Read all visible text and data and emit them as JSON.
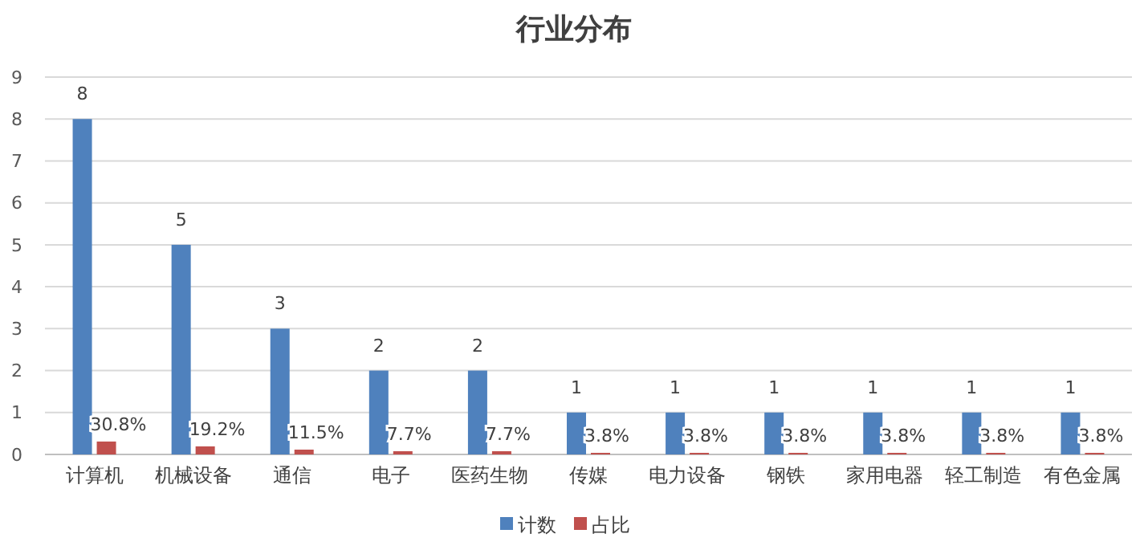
{
  "chart_data": {
    "type": "bar",
    "title": "行业分布",
    "categories": [
      "计算机",
      "机械设备",
      "通信",
      "电子",
      "医药生物",
      "传媒",
      "电力设备",
      "钢铁",
      "家用电器",
      "轻工制造",
      "有色金属"
    ],
    "series": [
      {
        "name": "计数",
        "color": "#4f81bd",
        "values": [
          8,
          5,
          3,
          2,
          2,
          1,
          1,
          1,
          1,
          1,
          1
        ],
        "value_labels": [
          "8",
          "5",
          "3",
          "2",
          "2",
          "1",
          "1",
          "1",
          "1",
          "1",
          "1"
        ]
      },
      {
        "name": "占比",
        "color": "#c0504d",
        "values": [
          0.308,
          0.192,
          0.115,
          0.077,
          0.077,
          0.038,
          0.038,
          0.038,
          0.038,
          0.038,
          0.038
        ],
        "value_labels": [
          "30.8%",
          "19.2%",
          "11.5%",
          "7.7%",
          "7.7%",
          "3.8%",
          "3.8%",
          "3.8%",
          "3.8%",
          "3.8%",
          "3.8%"
        ]
      }
    ],
    "ylim": [
      0,
      9
    ],
    "yticks": [
      0,
      1,
      2,
      3,
      4,
      5,
      6,
      7,
      8,
      9
    ],
    "grid": "y",
    "legend": "bottom"
  }
}
